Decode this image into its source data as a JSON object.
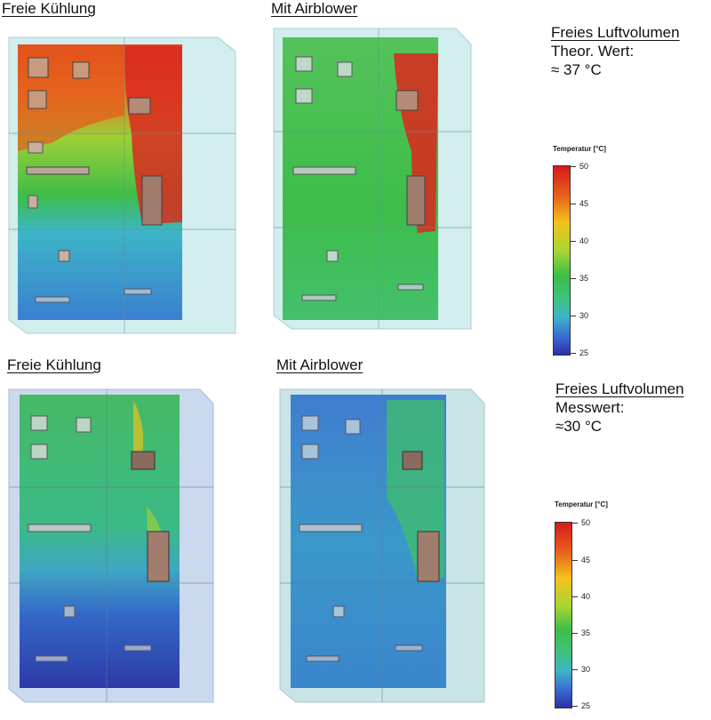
{
  "top": {
    "left_title": "Freie Kühlung",
    "right_title": "Mit Airblower",
    "info_title": "Freies Luftvolumen",
    "info_line1": "Theor. Wert:",
    "info_line2": "≈ 37 °C"
  },
  "bottom": {
    "left_title": "Freie Kühlung",
    "right_title": "Mit Airblower",
    "info_title": "Freies Luftvolumen",
    "info_line1": "Messwert:",
    "info_line2": "≈30 °C"
  },
  "legend": {
    "title": "Temperatur [°C]",
    "ticks": [
      "50",
      "45",
      "40",
      "35",
      "30",
      "25"
    ]
  },
  "colors": {
    "hot": "#d7191c",
    "warm": "#f4c21b",
    "mid": "#3dbd4a",
    "cool": "#3cb5c7",
    "cold": "#2b2fa8"
  }
}
